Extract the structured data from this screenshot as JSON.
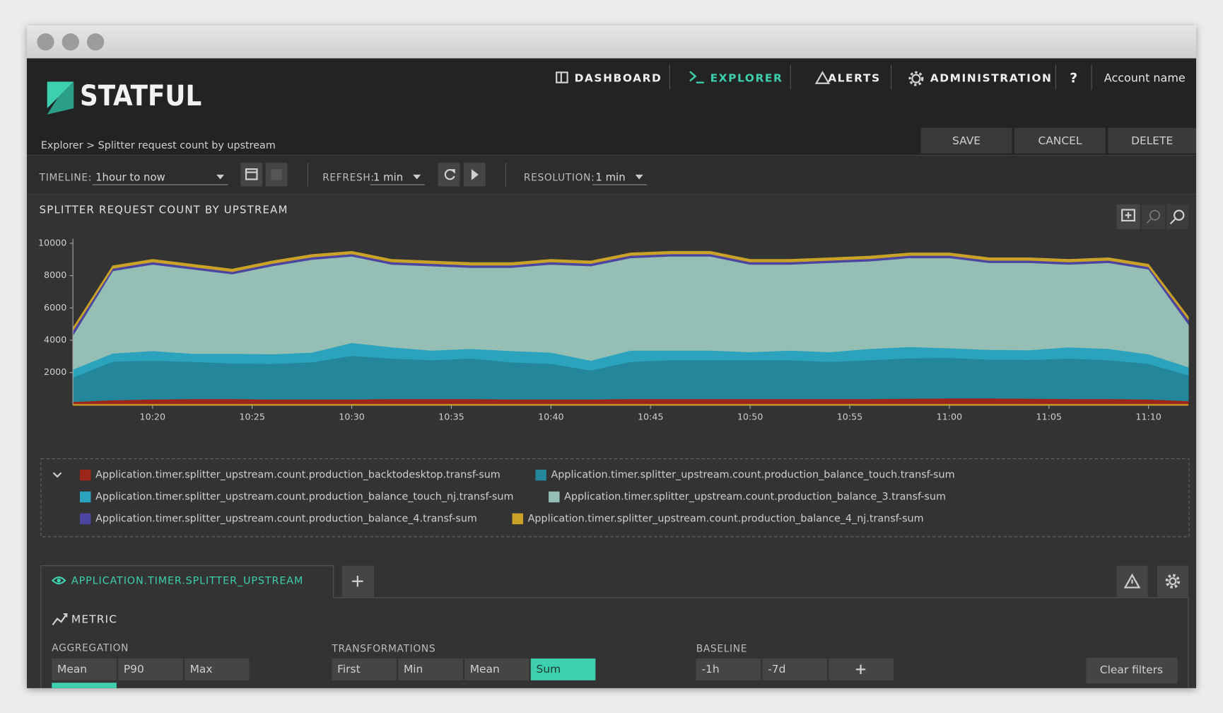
{
  "nav": {
    "logo": "STATFUL",
    "items": [
      "DASHBOARD",
      "EXPLORER",
      "ALERTS",
      "ADMINISTRATION",
      "?"
    ],
    "account": "Account name"
  },
  "breadcrumb": "Explorer > Splitter request count by upstream",
  "actions": [
    "SAVE",
    "CANCEL",
    "DELETE"
  ],
  "toolbar": {
    "timeline_label": "TIMELINE:",
    "timeline": "1hour to now",
    "refresh_label": "REFRESH:",
    "refresh": "1 min",
    "resolution_label": "RESOLUTION:",
    "resolution": "1 min"
  },
  "chart_data": {
    "type": "area",
    "stacked": true,
    "title": "SPLITTER REQUEST COUNT BY UPSTREAM",
    "x": [
      "10:16",
      "10:18",
      "10:20",
      "10:22",
      "10:24",
      "10:26",
      "10:28",
      "10:30",
      "10:32",
      "10:34",
      "10:36",
      "10:38",
      "10:40",
      "10:42",
      "10:44",
      "10:46",
      "10:48",
      "10:50",
      "10:52",
      "10:54",
      "10:56",
      "10:58",
      "11:00",
      "11:02",
      "11:04",
      "11:06",
      "11:08",
      "11:10",
      "11:12"
    ],
    "xlim": [
      "10:16",
      "11:12"
    ],
    "xticks": [
      "10:20",
      "10:25",
      "10:30",
      "10:35",
      "10:40",
      "10:45",
      "10:50",
      "10:55",
      "11:00",
      "11:05",
      "11:10"
    ],
    "ylim": [
      0,
      10000
    ],
    "yticks": [
      2000,
      4000,
      6000,
      8000,
      10000
    ],
    "series": [
      {
        "name": "Application.timer.splitter_upstream.count.production_backtodesktop.transf-sum",
        "color": "#9e2519",
        "values": [
          200,
          300,
          350,
          380,
          380,
          350,
          350,
          350,
          380,
          380,
          380,
          350,
          350,
          350,
          380,
          380,
          380,
          380,
          380,
          380,
          380,
          400,
          420,
          420,
          400,
          380,
          380,
          350,
          250
        ]
      },
      {
        "name": "Application.timer.splitter_upstream.count.production_balance_touch.transf-sum",
        "color": "#23869a",
        "values": [
          1500,
          2400,
          2400,
          2300,
          2200,
          2200,
          2300,
          2700,
          2500,
          2400,
          2500,
          2300,
          2200,
          1800,
          2300,
          2400,
          2400,
          2400,
          2400,
          2300,
          2400,
          2500,
          2500,
          2400,
          2400,
          2500,
          2400,
          2200,
          1600
        ]
      },
      {
        "name": "Application.timer.splitter_upstream.count.production_balance_touch_nj.transf-sum",
        "color": "#2ba3bd",
        "values": [
          500,
          500,
          600,
          500,
          600,
          600,
          600,
          800,
          700,
          600,
          600,
          700,
          700,
          600,
          700,
          600,
          600,
          500,
          600,
          600,
          700,
          700,
          600,
          600,
          600,
          700,
          700,
          600,
          500
        ]
      },
      {
        "name": "Application.timer.splitter_upstream.count.production_balance_3.transf-sum",
        "color": "#95bfb5",
        "values": [
          2100,
          5100,
          5350,
          5220,
          4920,
          5450,
          5750,
          5350,
          5120,
          5220,
          5020,
          5150,
          5450,
          5850,
          5720,
          5820,
          5820,
          5420,
          5320,
          5520,
          5420,
          5500,
          5580,
          5380,
          5400,
          5120,
          5320,
          5250,
          2650
        ]
      },
      {
        "name": "Application.timer.splitter_upstream.count.production_balance_4.transf-sum",
        "color": "#4b45a0",
        "values": [
          300,
          150,
          150,
          150,
          150,
          150,
          150,
          150,
          150,
          150,
          150,
          150,
          150,
          150,
          150,
          150,
          150,
          150,
          150,
          150,
          150,
          150,
          150,
          150,
          150,
          150,
          150,
          150,
          300
        ]
      },
      {
        "name": "Application.timer.splitter_upstream.count.production_balance_4_nj.transf-sum",
        "color": "#c9a227",
        "values": [
          150,
          150,
          150,
          150,
          150,
          150,
          150,
          150,
          150,
          150,
          150,
          150,
          150,
          150,
          150,
          150,
          150,
          150,
          150,
          150,
          150,
          150,
          150,
          150,
          150,
          150,
          150,
          150,
          150
        ]
      }
    ]
  },
  "query": {
    "tab": "APPLICATION.TIMER.SPLITTER_UPSTREAM",
    "metric": "METRIC",
    "aggregation": {
      "label": "AGGREGATION",
      "options": [
        "Mean",
        "P90",
        "Max"
      ]
    },
    "transformations": {
      "label": "TRANSFORMATIONS",
      "options": [
        "First",
        "Min",
        "Mean",
        "Sum"
      ],
      "selected": "Sum"
    },
    "baseline": {
      "label": "BASELINE",
      "options": [
        "-1h",
        "-7d"
      ]
    },
    "clear": "Clear filters"
  }
}
